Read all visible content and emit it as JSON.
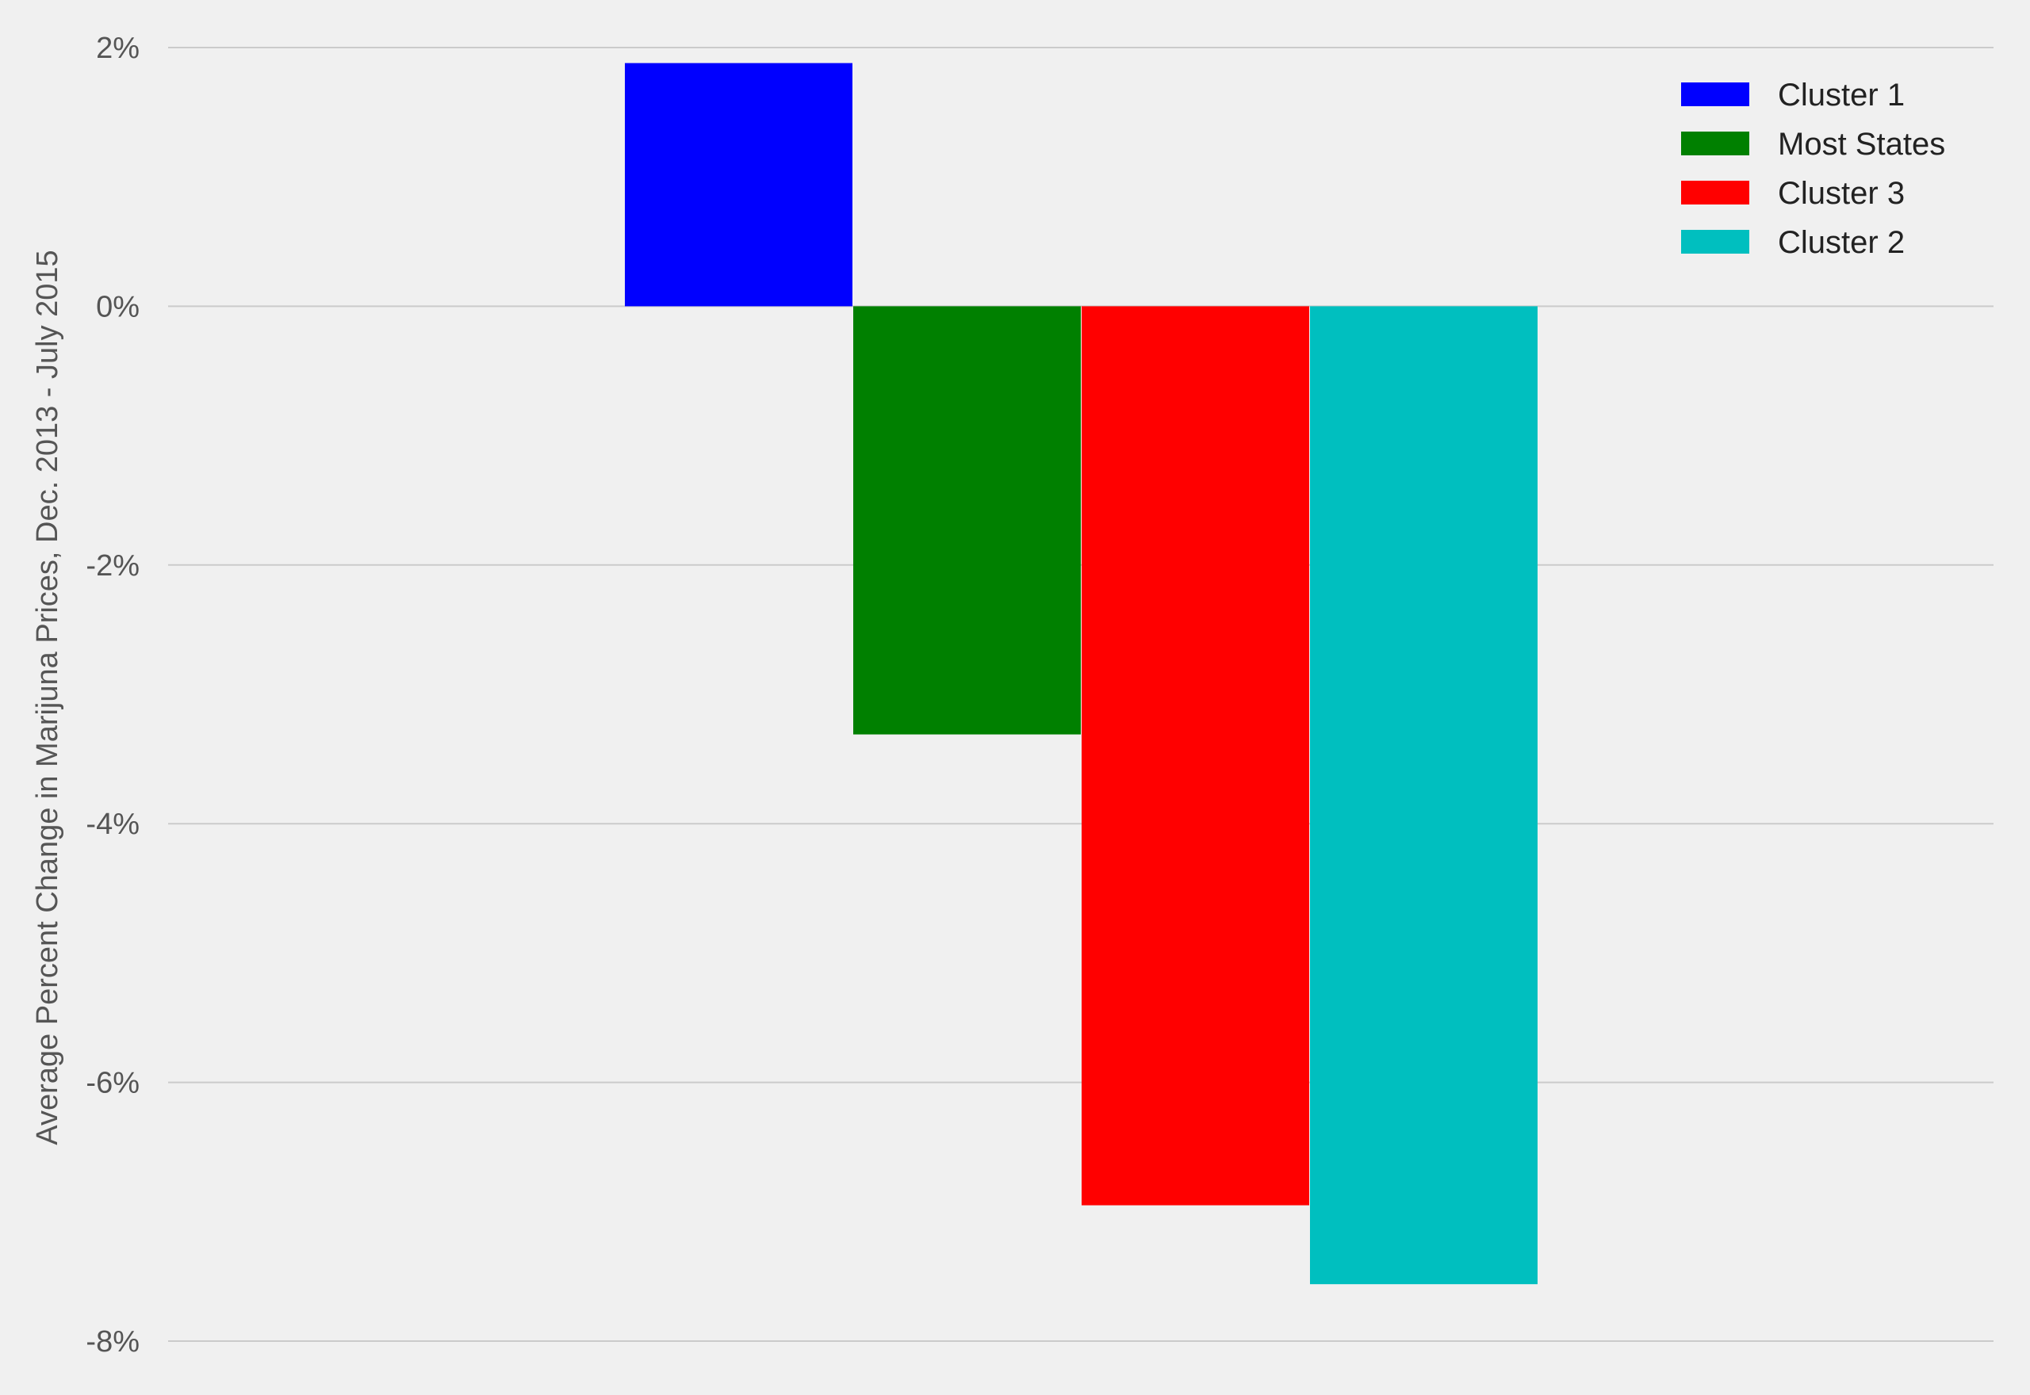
{
  "chart_data": {
    "type": "bar",
    "xlabel": "",
    "ylabel": "Average Percent Change in Marijuna Prices, Dec. 2013 - July 2015",
    "ylim": [
      -8,
      2
    ],
    "y_ticks": [
      2,
      0,
      -2,
      -4,
      -6,
      -8
    ],
    "y_tick_labels": [
      "2%",
      "0%",
      "-2%",
      "-4%",
      "-6%",
      "-8%"
    ],
    "grid": "horizontal",
    "legend_position": "top-right",
    "series": [
      {
        "name": "Cluster 1",
        "value": 1.88,
        "color": "#0000ff"
      },
      {
        "name": "Most States",
        "value": -3.31,
        "color": "#008000"
      },
      {
        "name": "Cluster 3",
        "value": -6.95,
        "color": "#ff0000"
      },
      {
        "name": "Cluster 2",
        "value": -7.56,
        "color": "#00bfbf"
      }
    ]
  }
}
